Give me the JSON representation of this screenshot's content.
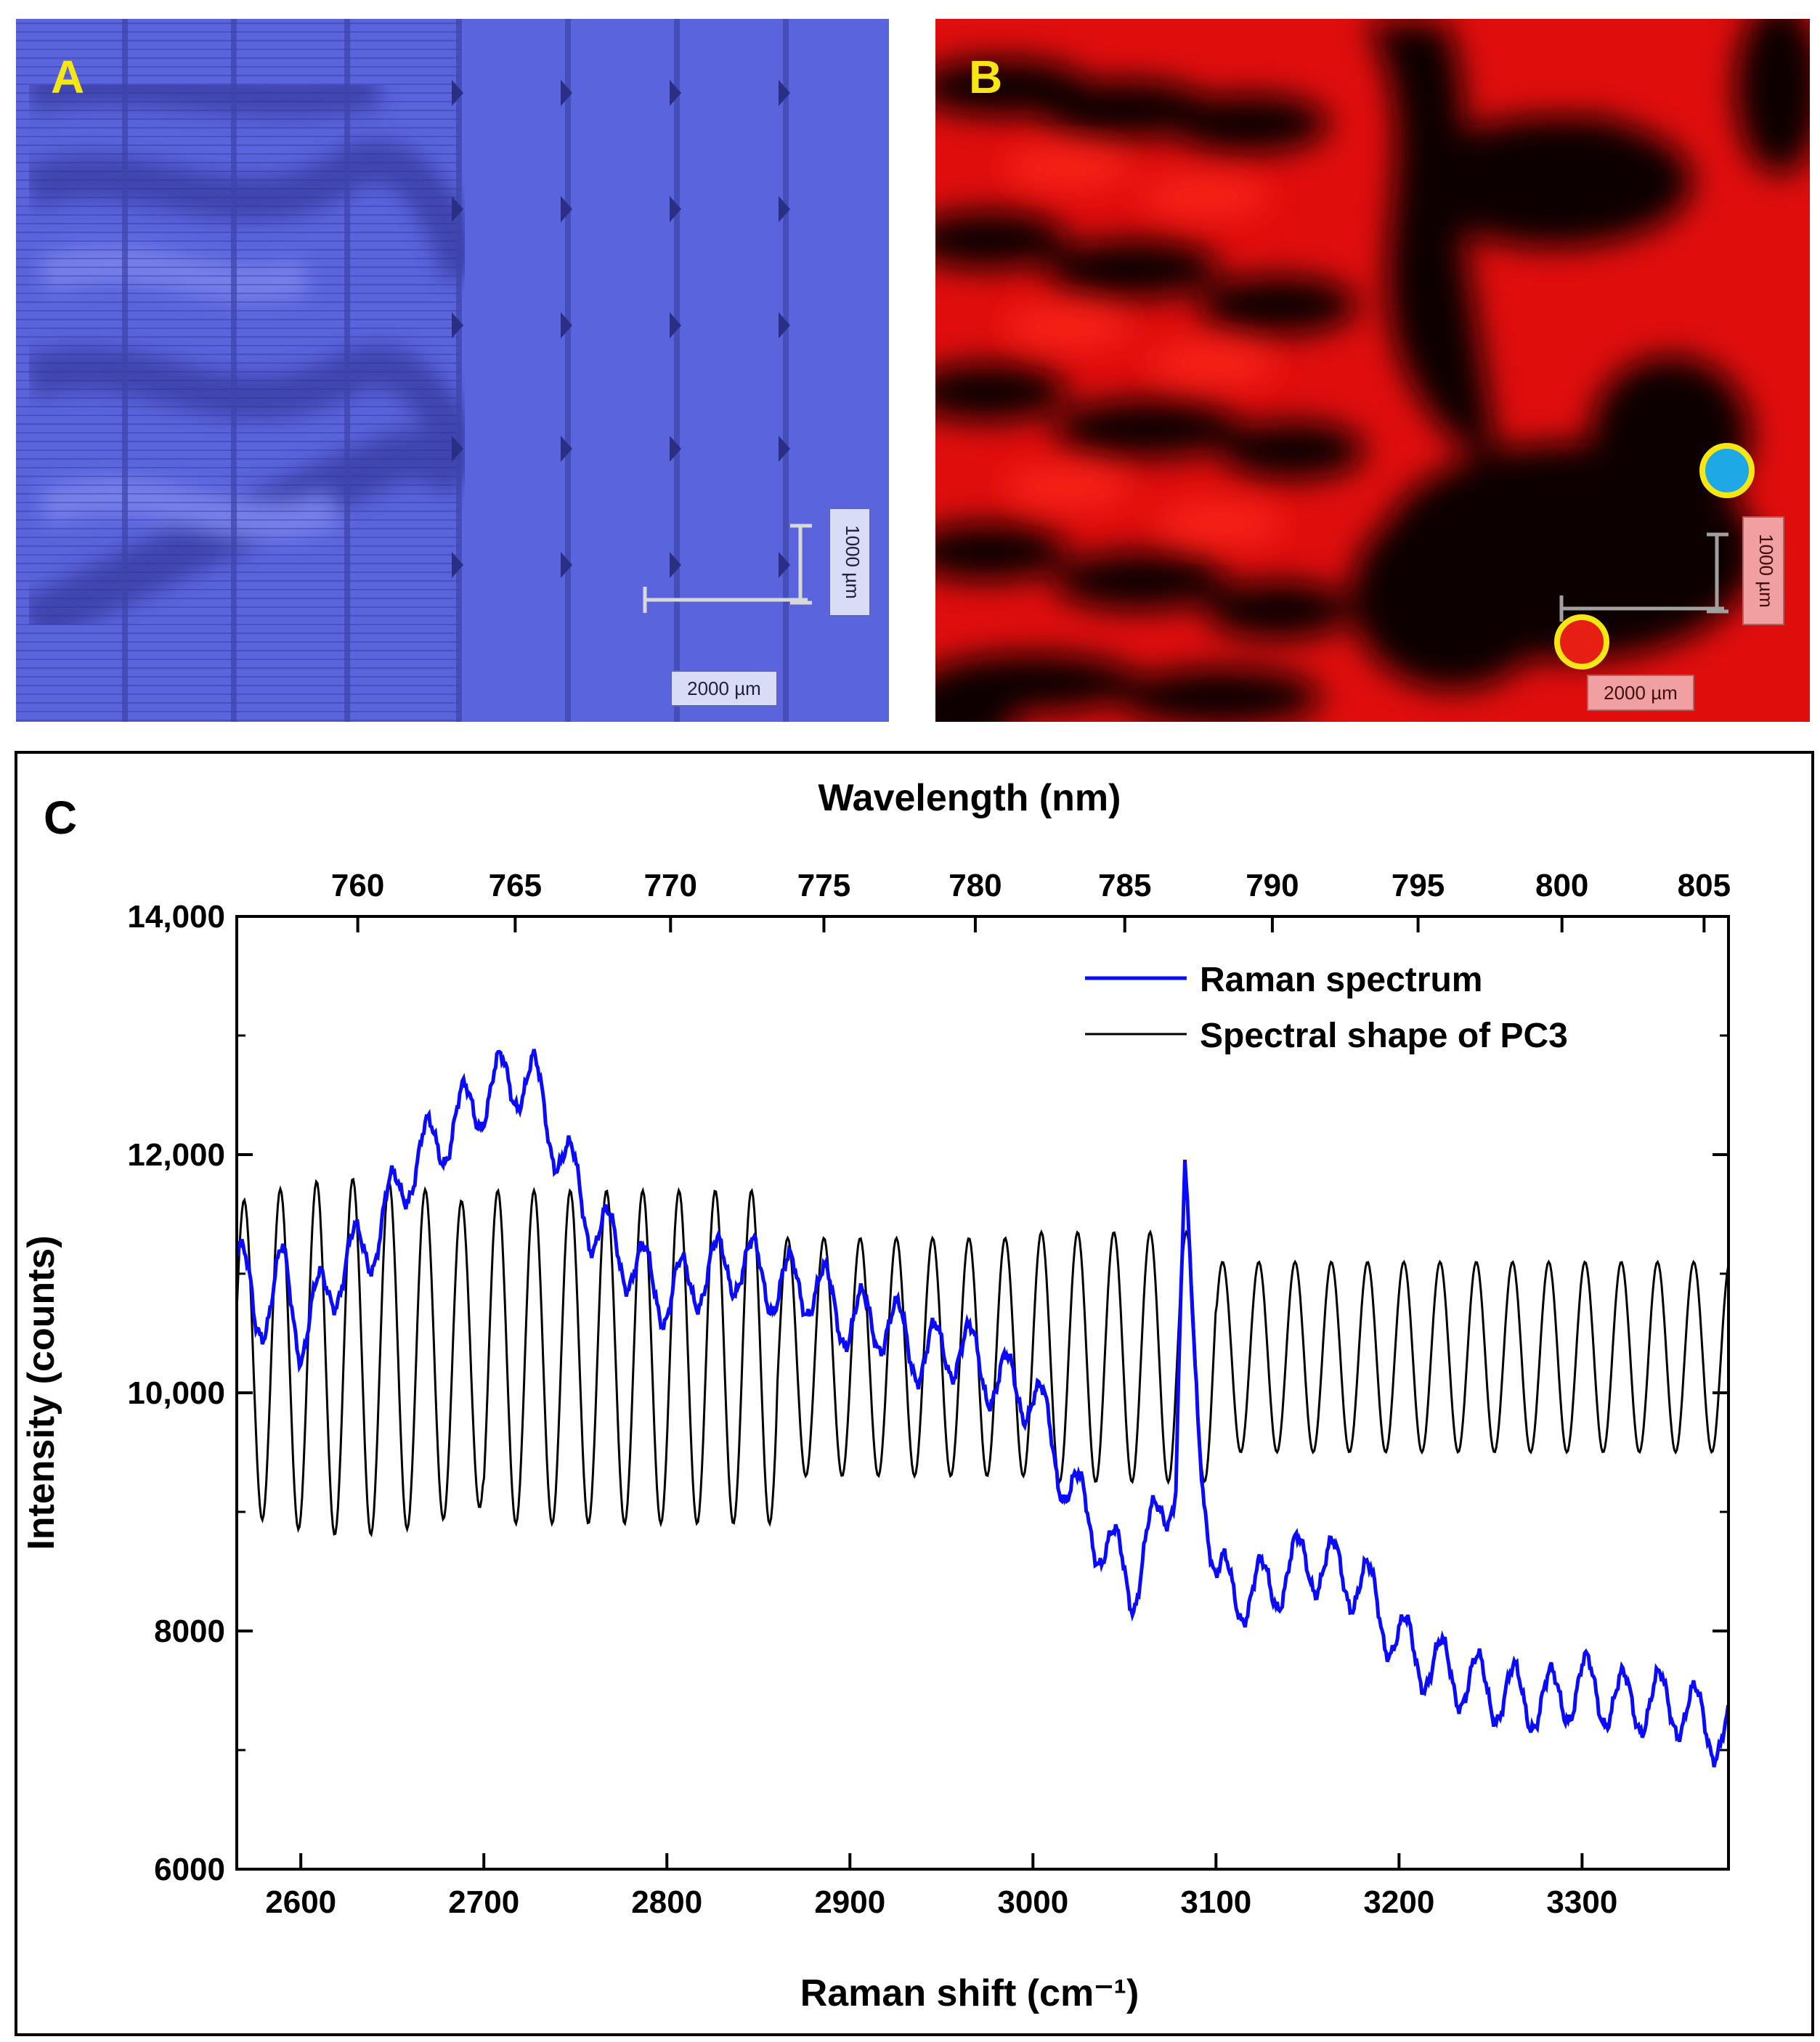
{
  "panel_a": {
    "letter": "A",
    "scale_v_label": "1000 µm",
    "scale_h_label": "2000 µm",
    "colors": {
      "base": "#5a64dc",
      "dark": "#333a9c",
      "letter": "#f5e614"
    }
  },
  "panel_b": {
    "letter": "B",
    "scale_v_label": "1000 µm",
    "scale_h_label": "2000 µm",
    "markers": [
      {
        "name": "blue-marker",
        "fill": "#1ea8e6",
        "ring": "#f5e614"
      },
      {
        "name": "red-marker",
        "fill": "#e61e14",
        "ring": "#f5e614"
      }
    ],
    "colors": {
      "base": "#e00d0d",
      "dark": "#0d0000",
      "letter": "#f5e614"
    }
  },
  "chart_data": {
    "panel_letter": "C",
    "type": "line",
    "title": "",
    "xlabel": "Raman shift (cm⁻¹)",
    "xlabel_top": "Wavelength (nm)",
    "ylabel": "Intensity (counts)",
    "xlim": [
      2565,
      3380
    ],
    "ylim": [
      6000,
      14000
    ],
    "x_ticks": [
      2600,
      2700,
      2800,
      2900,
      3000,
      3100,
      3200,
      3300
    ],
    "x_tick_labels": [
      "2600",
      "2700",
      "2800",
      "2900",
      "3000",
      "3100",
      "3200",
      "3300"
    ],
    "y_ticks": [
      6000,
      8000,
      10000,
      12000,
      14000
    ],
    "y_tick_labels": [
      "6000",
      "8000",
      "10,000",
      "12,000",
      "14,000"
    ],
    "top_ticks": [
      760,
      765,
      770,
      775,
      780,
      785,
      790,
      795,
      800,
      805
    ],
    "top_tick_labels": [
      "760",
      "765",
      "770",
      "775",
      "780",
      "785",
      "790",
      "795",
      "800",
      "805"
    ],
    "legend_position": "top-right",
    "grid": false,
    "series": [
      {
        "name": "Raman spectrum",
        "color": "#0a0aff",
        "x": [
          2565,
          2575,
          2590,
          2600,
          2620,
          2640,
          2660,
          2680,
          2700,
          2710,
          2720,
          2727,
          2740,
          2760,
          2780,
          2800,
          2820,
          2840,
          2860,
          2880,
          2900,
          2920,
          2940,
          2960,
          2980,
          3000,
          3020,
          3040,
          3055,
          3070,
          3078,
          3083,
          3090,
          3100,
          3120,
          3150,
          3180,
          3200,
          3220,
          3250,
          3280,
          3300,
          3320,
          3350,
          3380
        ],
        "y": [
          11200,
          10600,
          11000,
          10500,
          11000,
          11300,
          11900,
          12200,
          12500,
          12600,
          12650,
          12600,
          12100,
          11400,
          11100,
          10800,
          11000,
          11100,
          10900,
          10900,
          10600,
          10600,
          10300,
          10400,
          10100,
          10000,
          9200,
          8700,
          8400,
          9000,
          9300,
          11950,
          9800,
          8400,
          8300,
          8600,
          8400,
          7900,
          7700,
          7500,
          7400,
          7550,
          7400,
          7400,
          7100
        ]
      },
      {
        "name": "Spectral shape of PC3",
        "color": "#000000",
        "x": [
          2565,
          3380
        ],
        "y": [
          10300,
          10300
        ]
      }
    ]
  }
}
